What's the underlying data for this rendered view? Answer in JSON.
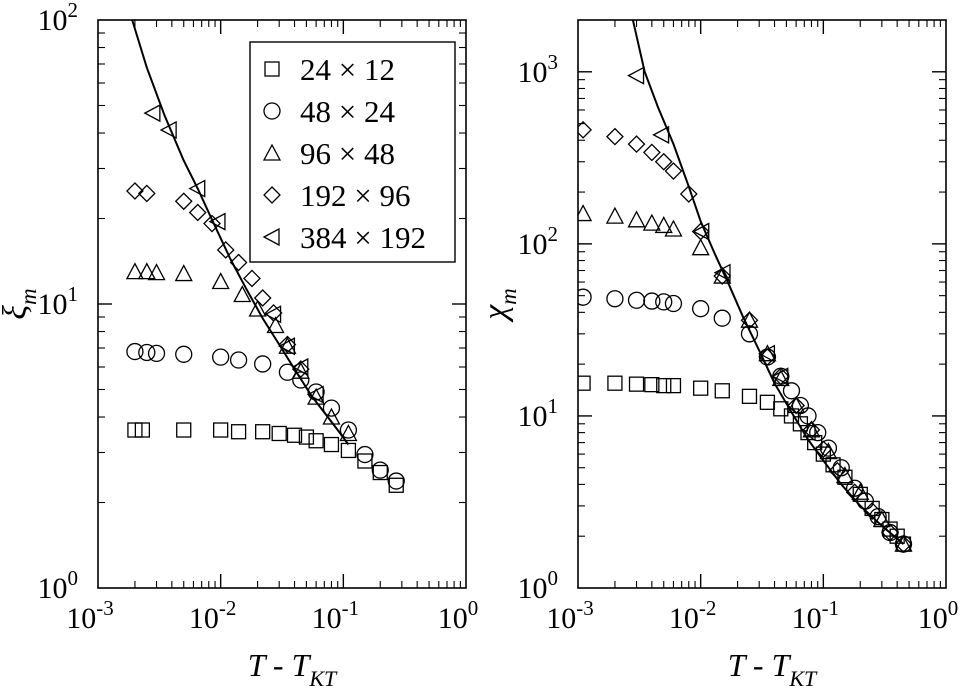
{
  "chart_data": [
    {
      "type": "scatter",
      "panel": "left",
      "xlabel": {
        "main": "T  -  T",
        "sub": "KT"
      },
      "ylabel": {
        "main": "ξ",
        "sub": "m"
      },
      "xscale": "log",
      "yscale": "log",
      "xlim": [
        0.001,
        1
      ],
      "ylim": [
        1,
        100
      ],
      "xticks": [
        {
          "base": "10",
          "exp": "-3"
        },
        {
          "base": "10",
          "exp": "-2"
        },
        {
          "base": "10",
          "exp": "-1"
        },
        {
          "base": "10",
          "exp": "0"
        }
      ],
      "yticks": [
        {
          "base": "10",
          "exp": "0"
        },
        {
          "base": "10",
          "exp": "1"
        },
        {
          "base": "10",
          "exp": "2"
        }
      ],
      "legend": {
        "placement": "top-right",
        "entries": [
          {
            "marker": "square",
            "label": "24 × 12"
          },
          {
            "marker": "circle",
            "label": "48 × 24"
          },
          {
            "marker": "triangle-up",
            "label": "96 × 48"
          },
          {
            "marker": "diamond",
            "label": "192 × 96"
          },
          {
            "marker": "triangle-left",
            "label": "384 × 192"
          }
        ]
      },
      "fit_curve": {
        "x": [
          0.0019,
          0.0025,
          0.0035,
          0.005,
          0.0065,
          0.0085,
          0.012,
          0.016,
          0.022,
          0.03,
          0.04,
          0.055,
          0.07,
          0.09,
          0.11
        ],
        "y": [
          100,
          68,
          46,
          32,
          25.5,
          19.8,
          14.4,
          11.4,
          8.9,
          7.2,
          5.9,
          4.75,
          4.15,
          3.6,
          3.2
        ]
      },
      "series": [
        {
          "name": "24 × 12",
          "marker": "square",
          "x": [
            0.002,
            0.0023,
            0.005,
            0.01,
            0.014,
            0.022,
            0.03,
            0.04,
            0.05,
            0.06,
            0.08,
            0.11,
            0.15,
            0.2,
            0.27
          ],
          "y": [
            3.6,
            3.6,
            3.6,
            3.6,
            3.55,
            3.55,
            3.5,
            3.45,
            3.4,
            3.3,
            3.2,
            3.05,
            2.8,
            2.55,
            2.3
          ]
        },
        {
          "name": "48 × 24",
          "marker": "circle",
          "x": [
            0.002,
            0.0025,
            0.003,
            0.005,
            0.01,
            0.014,
            0.022,
            0.035,
            0.045,
            0.06,
            0.08,
            0.11,
            0.15,
            0.2,
            0.27
          ],
          "y": [
            6.8,
            6.75,
            6.7,
            6.65,
            6.5,
            6.35,
            6.15,
            5.75,
            5.4,
            4.9,
            4.3,
            3.6,
            2.95,
            2.6,
            2.38
          ]
        },
        {
          "name": "96 × 48",
          "marker": "triangle-up",
          "x": [
            0.002,
            0.0025,
            0.003,
            0.005,
            0.01,
            0.015,
            0.02,
            0.028,
            0.035,
            0.045,
            0.06,
            0.08,
            0.11
          ],
          "y": [
            13,
            13,
            12.9,
            12.8,
            12.0,
            10.8,
            9.6,
            8.4,
            7.1,
            5.8,
            4.7,
            4.0,
            3.5
          ]
        },
        {
          "name": "192 × 96",
          "marker": "diamond",
          "x": [
            0.002,
            0.0025,
            0.005,
            0.0065,
            0.0085,
            0.011,
            0.014,
            0.018,
            0.022,
            0.027,
            0.035,
            0.045
          ],
          "y": [
            25,
            24.5,
            23,
            21,
            19.2,
            15.5,
            14,
            12.3,
            10.5,
            9.3,
            7.2,
            5.9
          ]
        },
        {
          "name": "384 × 192",
          "marker": "triangle-left",
          "x": [
            0.0028,
            0.0038,
            0.0065,
            0.0095,
            0.027,
            0.035,
            0.045,
            0.06
          ],
          "y": [
            47,
            41,
            25.5,
            19.5,
            9.2,
            7.1,
            6.0,
            4.8
          ]
        }
      ]
    },
    {
      "type": "scatter",
      "panel": "right",
      "xlabel": {
        "main": "T  -  T",
        "sub": "KT"
      },
      "ylabel": {
        "main": "χ",
        "sub": "m"
      },
      "xscale": "log",
      "yscale": "log",
      "xlim": [
        0.001,
        1
      ],
      "ylim": [
        1,
        2000
      ],
      "xticks": [
        {
          "base": "10",
          "exp": "-3"
        },
        {
          "base": "10",
          "exp": "-2"
        },
        {
          "base": "10",
          "exp": "-1"
        },
        {
          "base": "10",
          "exp": "0"
        }
      ],
      "yticks": [
        {
          "base": "10",
          "exp": "0"
        },
        {
          "base": "10",
          "exp": "1"
        },
        {
          "base": "10",
          "exp": "2"
        },
        {
          "base": "10",
          "exp": "3"
        }
      ],
      "fit_curve": {
        "x": [
          0.0028,
          0.0035,
          0.0045,
          0.006,
          0.008,
          0.01,
          0.013,
          0.017,
          0.022,
          0.03,
          0.04,
          0.055,
          0.075,
          0.1,
          0.14,
          0.2,
          0.3,
          0.45
        ],
        "y": [
          2000,
          1000,
          620,
          380,
          215,
          135,
          88,
          58,
          38,
          24,
          15.5,
          10.5,
          7.3,
          5.5,
          4.0,
          3.0,
          2.3,
          1.8
        ]
      },
      "series": [
        {
          "name": "24 × 12",
          "marker": "square",
          "x": [
            0.0011,
            0.002,
            0.003,
            0.004,
            0.005,
            0.006,
            0.01,
            0.015,
            0.025,
            0.035,
            0.045,
            0.055,
            0.065,
            0.075,
            0.085,
            0.1,
            0.12,
            0.15,
            0.2,
            0.25,
            0.3,
            0.35,
            0.4,
            0.45
          ],
          "y": [
            15.5,
            15.5,
            15.3,
            15.2,
            15.0,
            15.0,
            14.5,
            14.0,
            13.0,
            12.0,
            11.0,
            10.0,
            9.0,
            8.0,
            7.0,
            6.0,
            5.2,
            4.4,
            3.5,
            2.9,
            2.5,
            2.2,
            2.0,
            1.8
          ]
        },
        {
          "name": "48 × 24",
          "marker": "circle",
          "x": [
            0.0011,
            0.002,
            0.003,
            0.004,
            0.005,
            0.006,
            0.01,
            0.015,
            0.025,
            0.035,
            0.045,
            0.055,
            0.065,
            0.075,
            0.09,
            0.11,
            0.14,
            0.18,
            0.22,
            0.28,
            0.35,
            0.45
          ],
          "y": [
            49,
            48,
            47,
            46.5,
            46,
            45,
            42,
            37,
            30,
            22,
            17,
            14,
            11.5,
            10,
            8,
            6.5,
            5,
            3.8,
            3.2,
            2.6,
            2.1,
            1.8
          ]
        },
        {
          "name": "96 × 48",
          "marker": "triangle-up",
          "x": [
            0.0011,
            0.002,
            0.003,
            0.004,
            0.005,
            0.006,
            0.01,
            0.015,
            0.025,
            0.035,
            0.045,
            0.06,
            0.08,
            0.11,
            0.15,
            0.2,
            0.3,
            0.45
          ],
          "y": [
            150,
            145,
            138,
            132,
            128,
            122,
            95,
            65,
            36,
            23,
            16.5,
            11.5,
            8.3,
            6.2,
            4.5,
            3.6,
            2.5,
            1.8
          ]
        },
        {
          "name": "192 × 96",
          "marker": "diamond",
          "x": [
            0.0011,
            0.002,
            0.003,
            0.004,
            0.005,
            0.006,
            0.008,
            0.01,
            0.015,
            0.025,
            0.035,
            0.045,
            0.06,
            0.08,
            0.1,
            0.13,
            0.18,
            0.25,
            0.35,
            0.45
          ],
          "y": [
            460,
            420,
            380,
            340,
            300,
            265,
            195,
            118,
            65,
            36,
            22,
            17,
            11.5,
            8.3,
            6.4,
            4.8,
            3.6,
            2.8,
            2.1,
            1.8
          ]
        },
        {
          "name": "384 × 192",
          "marker": "triangle-left",
          "x": [
            0.003,
            0.0048,
            0.0102,
            0.0152,
            0.035,
            0.045
          ],
          "y": [
            950,
            430,
            118,
            68,
            23,
            17
          ]
        }
      ]
    }
  ]
}
